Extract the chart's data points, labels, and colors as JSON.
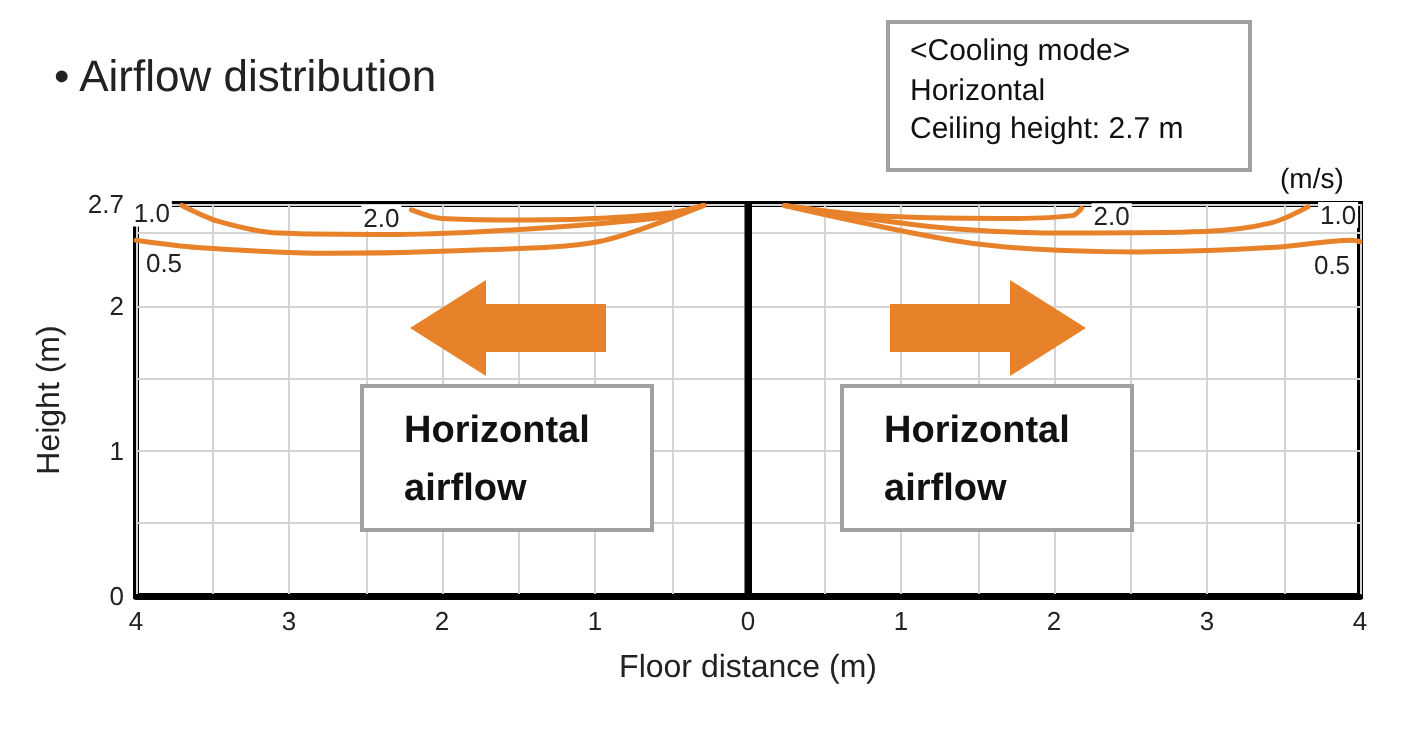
{
  "chart_data": {
    "type": "line",
    "title": "• Airflow distribution",
    "xlabel": "Floor distance (m)",
    "ylabel": "Height (m)",
    "annotations": [
      "<Cooling mode>\nHorizontal\nCeiling height: 2.7 m",
      "Horizontal\nairflow",
      "Horizontal\nairflow",
      "(m/s)"
    ],
    "xlim": [
      -4,
      4
    ],
    "ylim": [
      0,
      2.7
    ],
    "xticks": [
      {
        "value": -4,
        "label": "4"
      },
      {
        "value": -3.5,
        "label": null
      },
      {
        "value": -3,
        "label": "3"
      },
      {
        "value": -2.5,
        "label": null
      },
      {
        "value": -2,
        "label": "2"
      },
      {
        "value": -1.5,
        "label": null
      },
      {
        "value": -1,
        "label": "1"
      },
      {
        "value": -0.5,
        "label": null
      },
      0,
      {
        "value": 0.5,
        "label": null
      },
      1,
      {
        "value": 1.5,
        "label": null
      },
      2,
      {
        "value": 2.5,
        "label": null
      },
      3,
      {
        "value": 3.5,
        "label": null
      },
      4
    ],
    "yticks": [
      0,
      {
        "value": 0.5,
        "label": null
      },
      1,
      {
        "value": 1.5,
        "label": null
      },
      2,
      {
        "value": 2.5,
        "label": null
      },
      2.7
    ],
    "grid": true,
    "legend": false,
    "marker": "none",
    "line_style": "solid",
    "ref_lines": [
      {
        "axis": "x",
        "value": 0,
        "color": "#000000"
      }
    ],
    "series": [
      {
        "name": "2.0",
        "color": "#e8822a",
        "x": [
          -2.2,
          -2.0,
          -1.5,
          -1.0,
          -0.5,
          -0.29
        ],
        "values": [
          2.66,
          2.6,
          2.59,
          2.6,
          2.64,
          2.69
        ]
      },
      {
        "name": "1.0",
        "color": "#e8822a",
        "x": [
          -3.7,
          -3.46,
          -3.07,
          -2.29,
          -1.41,
          -0.55,
          -0.29
        ],
        "values": [
          2.69,
          2.58,
          2.5,
          2.49,
          2.53,
          2.61,
          2.69
        ]
      },
      {
        "name": "0.5",
        "color": "#e8822a",
        "x": [
          -4.0,
          -3.6,
          -2.72,
          -1.86,
          -0.98,
          -0.29
        ],
        "values": [
          2.45,
          2.4,
          2.36,
          2.38,
          2.44,
          2.69
        ]
      },
      {
        "name": "2.0",
        "color": "#e8822a",
        "x": [
          0.24,
          0.81,
          1.67,
          2.12,
          2.18
        ],
        "values": [
          2.69,
          2.62,
          2.6,
          2.62,
          2.67
        ]
      },
      {
        "name": "1.0",
        "color": "#e8822a",
        "x": [
          0.24,
          1.24,
          2.12,
          2.98,
          3.42,
          3.66
        ],
        "values": [
          2.69,
          2.54,
          2.5,
          2.51,
          2.57,
          2.68
        ]
      },
      {
        "name": "0.5",
        "color": "#e8822a",
        "x": [
          0.24,
          1.46,
          2.55,
          3.42,
          3.95,
          4.0
        ],
        "values": [
          2.69,
          2.43,
          2.37,
          2.4,
          2.45,
          2.44
        ]
      }
    ]
  }
}
